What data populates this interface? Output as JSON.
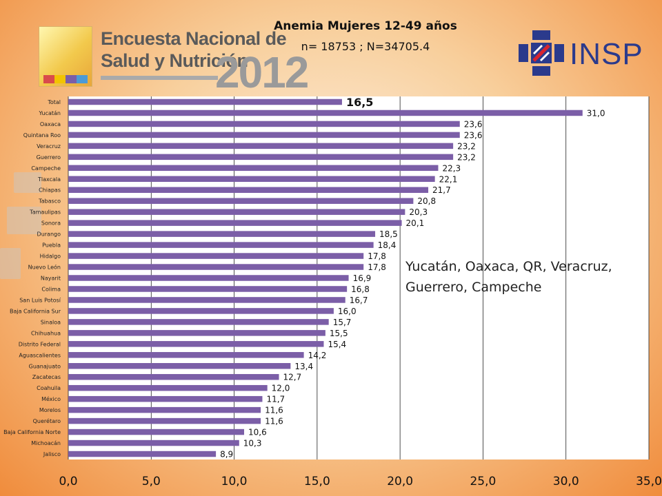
{
  "header": {
    "title": "Anemia Mujeres 12-49 años",
    "subtitle": "n= 18753 ; N=34705.4"
  },
  "logos": {
    "ensanut_line1": "Encuesta Nacional de",
    "ensanut_line2": "Salud y Nutrición",
    "ensanut_year": "2012",
    "insp": "INSP"
  },
  "annotation": "Yucatán, Oaxaca, QR, Veracruz, Guerrero, Campeche",
  "colors": {
    "bar": "#7b5ea7",
    "plot_background": "#ffffff",
    "gridline": "#222222"
  },
  "chart_data": {
    "type": "bar",
    "orientation": "horizontal",
    "categories": [
      "Total",
      "Yucatán",
      "Oaxaca",
      "Quintana Roo",
      "Veracruz",
      "Guerrero",
      "Campeche",
      "Tlaxcala",
      "Chiapas",
      "Tabasco",
      "Tamaulipas",
      "Sonora",
      "Durango",
      "Puebla",
      "Hidalgo",
      "Nuevo León",
      "Nayarit",
      "Colima",
      "San Luis Potosí",
      "Baja California Sur",
      "Sinaloa",
      "Chihuahua",
      "Distrito Federal",
      "Aguascalientes",
      "Guanajuato",
      "Zacatecas",
      "Coahuila",
      "México",
      "Morelos",
      "Querétaro",
      "Baja California Norte",
      "Michoacán",
      "Jalisco"
    ],
    "values": [
      16.5,
      31.0,
      23.6,
      23.6,
      23.2,
      23.2,
      22.3,
      22.1,
      21.7,
      20.8,
      20.3,
      20.1,
      18.5,
      18.4,
      17.8,
      17.8,
      16.9,
      16.8,
      16.7,
      16.0,
      15.7,
      15.5,
      15.4,
      14.2,
      13.4,
      12.7,
      12.0,
      11.7,
      11.6,
      11.6,
      10.6,
      10.3,
      8.9
    ],
    "value_labels": [
      "16,5",
      "31,0",
      "23,6",
      "23,6",
      "23,2",
      "23,2",
      "22,3",
      "22,1",
      "21,7",
      "20,8",
      "20,3",
      "20,1",
      "18,5",
      "18,4",
      "17,8",
      "17,8",
      "16,9",
      "16,8",
      "16,7",
      "16,0",
      "15,7",
      "15,5",
      "15,4",
      "14,2",
      "13,4",
      "12,7",
      "12,0",
      "11,7",
      "11,6",
      "11,6",
      "10,6",
      "10,3",
      "8,9"
    ],
    "highlight_category": "Total",
    "xlim": [
      0,
      35
    ],
    "xticks": [
      0,
      5,
      10,
      15,
      20,
      25,
      30,
      35
    ],
    "xtick_labels": [
      "0,0",
      "5,0",
      "10,0",
      "15,0",
      "20,0",
      "25,0",
      "30,0",
      "35,0"
    ],
    "grid": true,
    "title": "",
    "xlabel": "",
    "ylabel": ""
  }
}
